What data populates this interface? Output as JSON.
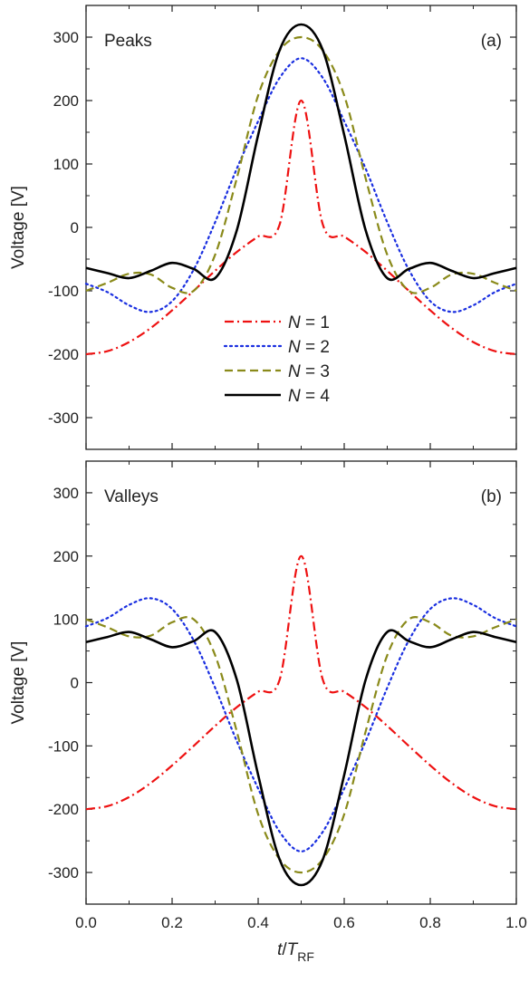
{
  "chart_data": [
    {
      "id": "a",
      "type": "line",
      "panel_label": "(a)",
      "annotation": "Peaks",
      "ylabel": "Voltage [V]",
      "xlim": [
        0.0,
        1.0
      ],
      "ylim": [
        -350,
        350
      ],
      "yticks": [
        -300,
        -200,
        -100,
        0,
        100,
        200,
        300
      ],
      "xtick_labels_shown": false,
      "legend": {
        "placement": "center-left",
        "entries": [
          {
            "prefix": "N",
            "suffix": " = 1"
          },
          {
            "prefix": "N",
            "suffix": " = 2"
          },
          {
            "prefix": "N",
            "suffix": " = 3"
          },
          {
            "prefix": "N",
            "suffix": " = 4"
          }
        ]
      },
      "series": [
        {
          "N": 1,
          "color": "#ee1111",
          "dash": "dashdot",
          "x": [
            0.0,
            0.05,
            0.1,
            0.15,
            0.2,
            0.25,
            0.3,
            0.35,
            0.4,
            0.45,
            0.5,
            0.55,
            0.6,
            0.65,
            0.7,
            0.75,
            0.8,
            0.85,
            0.9,
            0.95,
            1.0
          ],
          "y": [
            -200,
            -195.1,
            -180.9,
            -158.8,
            -130.9,
            -100,
            -68.4,
            -39.0,
            -14.5,
            4.9,
            200,
            4.9,
            -14.5,
            -39.0,
            -68.4,
            -100,
            -130.9,
            -158.8,
            -180.9,
            -195.1,
            -200
          ]
        },
        {
          "N": 2,
          "color": "#1a2fe0",
          "dash": "dot",
          "x": [
            0.0,
            0.05,
            0.1,
            0.15,
            0.2,
            0.25,
            0.3,
            0.35,
            0.4,
            0.45,
            0.5,
            0.55,
            0.6,
            0.65,
            0.7,
            0.75,
            0.8,
            0.85,
            0.9,
            0.95,
            1.0
          ],
          "y": [
            -88.9,
            -102.2,
            -122.8,
            -133.3,
            -116.4,
            -66.7,
            8.2,
            92.1,
            167.5,
            235.9,
            266.7,
            235.9,
            167.5,
            92.1,
            8.2,
            -66.7,
            -116.4,
            -133.3,
            -122.8,
            -102.2,
            -88.9
          ]
        },
        {
          "N": 3,
          "color": "#8a8a1a",
          "dash": "dash",
          "x": [
            0.0,
            0.05,
            0.1,
            0.15,
            0.2,
            0.25,
            0.3,
            0.35,
            0.4,
            0.45,
            0.5,
            0.55,
            0.6,
            0.65,
            0.7,
            0.75,
            0.8,
            0.85,
            0.9,
            0.95,
            1.0
          ],
          "y": [
            -100,
            -87.3,
            -73.1,
            -74.2,
            -95.3,
            -100,
            -43.2,
            76.5,
            208,
            279.1,
            300,
            279.1,
            208,
            76.5,
            -43.2,
            -100,
            -95.3,
            -74.2,
            -73.1,
            -87.3,
            -100
          ]
        },
        {
          "N": 4,
          "color": "#000000",
          "dash": "solid",
          "x": [
            0.0,
            0.05,
            0.1,
            0.15,
            0.2,
            0.25,
            0.3,
            0.35,
            0.4,
            0.45,
            0.5,
            0.55,
            0.6,
            0.65,
            0.7,
            0.75,
            0.8,
            0.85,
            0.9,
            0.95,
            1.0
          ],
          "y": [
            -64,
            -72.2,
            -80,
            -68.5,
            -56,
            -65.5,
            -80,
            -5.1,
            145.9,
            279.8,
            320,
            279.8,
            145.9,
            -5.1,
            -80,
            -65.5,
            -56,
            -68.5,
            -80,
            -72.2,
            -64
          ]
        }
      ]
    },
    {
      "id": "b",
      "type": "line",
      "panel_label": "(b)",
      "annotation": "Valleys",
      "xlabel_main": "t",
      "xlabel_sep": "/",
      "xlabel_sym": "T",
      "xlabel_sub": "RF",
      "ylabel": "Voltage [V]",
      "xlim": [
        0.0,
        1.0
      ],
      "ylim": [
        -350,
        350
      ],
      "xticks": [
        0.0,
        0.2,
        0.4,
        0.6,
        0.8,
        1.0
      ],
      "xtick_labels": [
        "0.0",
        "0.2",
        "0.4",
        "0.6",
        "0.8",
        "1.0"
      ],
      "yticks": [
        -300,
        -200,
        -100,
        0,
        100,
        200,
        300
      ],
      "series": [
        {
          "N": 1,
          "color": "#ee1111",
          "dash": "dashdot",
          "x": [
            0.0,
            0.05,
            0.1,
            0.15,
            0.2,
            0.25,
            0.3,
            0.35,
            0.4,
            0.45,
            0.5,
            0.55,
            0.6,
            0.65,
            0.7,
            0.75,
            0.8,
            0.85,
            0.9,
            0.95,
            1.0
          ],
          "y": [
            -200,
            -195.1,
            -180.9,
            -158.8,
            -130.9,
            -100,
            -68.4,
            -39.0,
            -14.5,
            4.9,
            200,
            4.9,
            -14.5,
            -39.0,
            -68.4,
            -100,
            -130.9,
            -158.8,
            -180.9,
            -195.1,
            -200
          ]
        },
        {
          "N": 2,
          "color": "#1a2fe0",
          "dash": "dot",
          "x": [
            0.0,
            0.05,
            0.1,
            0.15,
            0.2,
            0.25,
            0.3,
            0.35,
            0.4,
            0.45,
            0.5,
            0.55,
            0.6,
            0.65,
            0.7,
            0.75,
            0.8,
            0.85,
            0.9,
            0.95,
            1.0
          ],
          "y": [
            88.9,
            102.2,
            122.8,
            133.3,
            116.4,
            66.7,
            -8.2,
            -92.1,
            -167.5,
            -235.9,
            -266.7,
            -235.9,
            -167.5,
            -92.1,
            -8.2,
            66.7,
            116.4,
            133.3,
            122.8,
            102.2,
            88.9
          ]
        },
        {
          "N": 3,
          "color": "#8a8a1a",
          "dash": "dash",
          "x": [
            0.0,
            0.05,
            0.1,
            0.15,
            0.2,
            0.25,
            0.3,
            0.35,
            0.4,
            0.45,
            0.5,
            0.55,
            0.6,
            0.65,
            0.7,
            0.75,
            0.8,
            0.85,
            0.9,
            0.95,
            1.0
          ],
          "y": [
            100,
            87.3,
            73.1,
            74.2,
            95.3,
            100,
            43.2,
            -76.5,
            -208,
            -279.1,
            -300,
            -279.1,
            -208,
            -76.5,
            43.2,
            100,
            95.3,
            74.2,
            73.1,
            87.3,
            100
          ]
        },
        {
          "N": 4,
          "color": "#000000",
          "dash": "solid",
          "x": [
            0.0,
            0.05,
            0.1,
            0.15,
            0.2,
            0.25,
            0.3,
            0.35,
            0.4,
            0.45,
            0.5,
            0.55,
            0.6,
            0.65,
            0.7,
            0.75,
            0.8,
            0.85,
            0.9,
            0.95,
            1.0
          ],
          "y": [
            64,
            72.2,
            80,
            68.5,
            56,
            65.5,
            80,
            5.1,
            -145.9,
            -279.8,
            -320,
            -279.8,
            -145.9,
            5.1,
            80,
            65.5,
            56,
            68.5,
            80,
            72.2,
            64
          ]
        }
      ]
    }
  ]
}
